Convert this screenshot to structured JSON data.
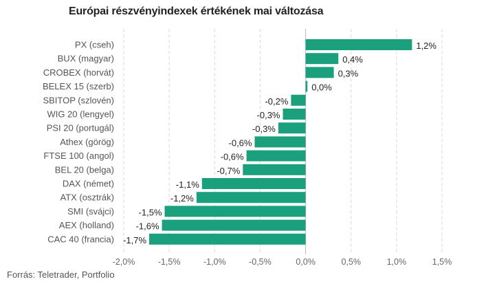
{
  "title": "Európai részvényindexek értékének mai változása",
  "source": "Forrás: Teletrader, Portfolio",
  "chart_data": {
    "type": "bar",
    "orientation": "horizontal",
    "title": "Európai részvényindexek értékének mai változása",
    "xlabel": "",
    "ylabel": "",
    "xlim": [
      -2.0,
      1.5
    ],
    "grid": true,
    "bar_color": "#1aa07c",
    "categories": [
      "PX (cseh)",
      "BUX (magyar)",
      "CROBEX (horvát)",
      "BELEX 15 (szerb)",
      "SBITOP (szlovén)",
      "WIG 20 (lengyel)",
      "PSI 20 (portugál)",
      "Athex (görög)",
      "FTSE 100 (angol)",
      "BEL 20 (belga)",
      "DAX (német)",
      "ATX (osztrák)",
      "SMI (svájci)",
      "AEX (holland)",
      "CAC 40 (francia)"
    ],
    "values": [
      1.17,
      0.36,
      0.31,
      0.02,
      -0.16,
      -0.25,
      -0.3,
      -0.56,
      -0.65,
      -0.69,
      -1.14,
      -1.2,
      -1.55,
      -1.58,
      -1.72
    ],
    "value_labels": [
      "1,2%",
      "0,4%",
      "0,3%",
      "0,0%",
      "-0,2%",
      "-0,3%",
      "-0,3%",
      "-0,6%",
      "-0,6%",
      "-0,7%",
      "-1,1%",
      "-1,2%",
      "-1,5%",
      "-1,6%",
      "-1,7%"
    ],
    "ticks": [
      -2.0,
      -1.5,
      -1.0,
      -0.5,
      0.0,
      0.5,
      1.0,
      1.5
    ],
    "tick_labels": [
      "-2,0%",
      "-1,5%",
      "-1,0%",
      "-0,5%",
      "0,0%",
      "0,5%",
      "1,0%",
      "1,5%"
    ]
  }
}
